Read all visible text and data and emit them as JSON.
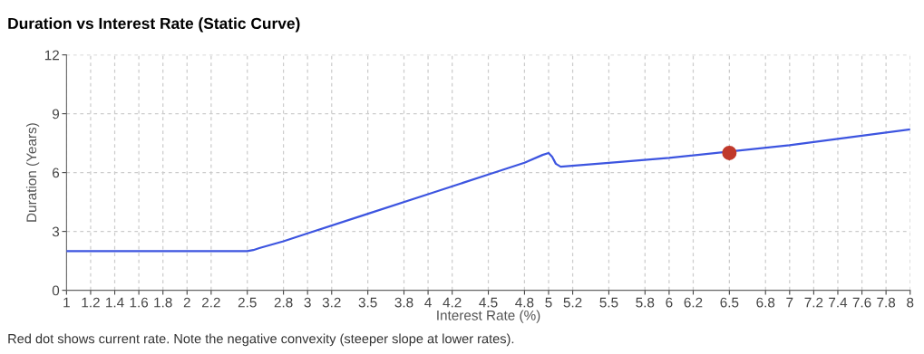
{
  "chart_data": {
    "type": "line",
    "title": "Duration vs Interest Rate (Static Curve)",
    "xlabel": "Interest Rate (%)",
    "ylabel": "Duration (Years)",
    "series": [
      {
        "color": "#3d55e0",
        "x": [
          1,
          1.5,
          2,
          2.5,
          2.55,
          2.6,
          2.8,
          3,
          3.5,
          4,
          4.5,
          4.8,
          4.95,
          5,
          5.03,
          5.06,
          5.1,
          5.5,
          6,
          7,
          7.5,
          8
        ],
        "values": [
          2,
          2,
          2,
          2,
          2.05,
          2.15,
          2.5,
          2.9,
          3.9,
          4.9,
          5.9,
          6.5,
          6.9,
          7.0,
          6.8,
          6.45,
          6.3,
          6.5,
          6.75,
          7.4,
          7.8,
          8.2
        ]
      },
      {
        "type": "scatter",
        "color": "#c0392b",
        "x": [
          6.5
        ],
        "values": [
          7.0
        ]
      }
    ],
    "xlim": [
      1,
      8
    ],
    "xticks": [
      1,
      1.2,
      1.4,
      1.6,
      1.8,
      2,
      2.2,
      2.5,
      2.8,
      3,
      3.2,
      3.5,
      3.8,
      4,
      4.2,
      4.5,
      4.8,
      5,
      5.2,
      5.5,
      5.8,
      6,
      6.2,
      6.5,
      6.8,
      7,
      7.2,
      7.4,
      7.6,
      7.8,
      8
    ],
    "ylim": [
      0,
      12
    ],
    "yticks": [
      0,
      3,
      6,
      9,
      12
    ],
    "grid": true,
    "annotations": [
      "Red dot shows current rate. Note the negative convexity (steeper slope at lower rates)."
    ]
  }
}
